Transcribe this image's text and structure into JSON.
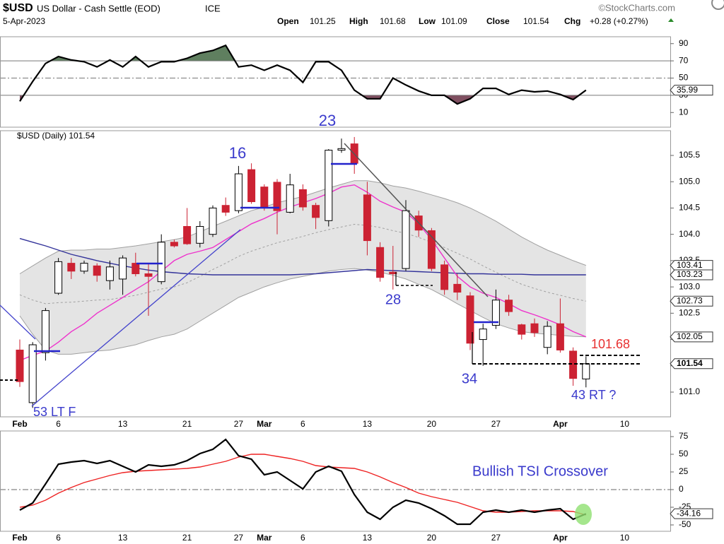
{
  "header": {
    "symbol": "$USD",
    "name": "US Dollar - Cash Settle (EOD)",
    "exchange": "ICE",
    "date": "5-Apr-2023",
    "source": "©StockCharts.com",
    "quote": [
      {
        "label": "Open",
        "value": 101.25
      },
      {
        "label": "High",
        "value": 101.68
      },
      {
        "label": "Low",
        "value": 101.09
      },
      {
        "label": "Close",
        "value": 101.54
      },
      {
        "label": "Chg",
        "value": "+0.28 (+0.27%)"
      }
    ]
  },
  "chart_data": [
    {
      "type": "line",
      "ylim": [
        -7,
        98
      ],
      "yticks": [
        90,
        70,
        50,
        30,
        10
      ],
      "levels": {
        "upper": 70,
        "middle": 50,
        "lower": 30
      },
      "upper_fill": "#5f7f5f",
      "lower_fill": "#7f4f60",
      "series": [
        {
          "color": "#000000",
          "values": [
            23,
            46,
            67,
            75,
            71,
            69,
            63,
            71,
            63,
            75,
            63,
            69,
            69,
            73,
            79,
            82,
            88,
            63,
            65,
            59,
            65,
            59,
            45,
            69,
            69,
            59,
            36,
            26,
            26,
            50,
            42,
            35,
            30,
            30,
            20,
            26,
            38,
            38,
            31,
            36,
            34,
            35,
            31,
            25,
            35.99,
            null,
            null,
            null
          ]
        }
      ]
    },
    {
      "type": "candlestick",
      "title": "$USD (Daily)",
      "categories": [
        "Feb",
        null,
        null,
        "6",
        null,
        null,
        null,
        null,
        "13",
        null,
        null,
        null,
        null,
        "21",
        null,
        null,
        null,
        "27",
        null,
        "Mar",
        null,
        null,
        "6",
        null,
        null,
        null,
        null,
        "13",
        null,
        null,
        null,
        null,
        "20",
        null,
        null,
        null,
        null,
        "27",
        null,
        null,
        null,
        null,
        "Apr",
        null,
        null,
        null,
        null,
        "10"
      ],
      "open": [
        101.8,
        100.8,
        101.75,
        102.88,
        103.45,
        103.3,
        103.4,
        103.12,
        103.15,
        103.45,
        103.25,
        103.1,
        103.85,
        104.15,
        103.83,
        104.0,
        104.55,
        104.45,
        105.23,
        104.9,
        104.99,
        104.42,
        104.85,
        104.55,
        104.26,
        105.6,
        105.72,
        104.75,
        103.75,
        103.28,
        103.35,
        104.35,
        104.07,
        103.42,
        103.05,
        102.83,
        102.0,
        102.27,
        102.75,
        102.28,
        102.3,
        101.85,
        102.3,
        101.78,
        101.25,
        null,
        null,
        null
      ],
      "high": [
        102.0,
        101.95,
        102.6,
        103.55,
        103.55,
        103.5,
        103.45,
        103.5,
        103.6,
        103.65,
        103.45,
        104.0,
        103.9,
        104.5,
        104.25,
        104.55,
        104.7,
        105.3,
        105.35,
        104.95,
        105.05,
        105.15,
        104.95,
        104.6,
        105.62,
        105.82,
        105.85,
        105.0,
        103.85,
        103.78,
        104.65,
        104.45,
        104.12,
        103.5,
        103.25,
        102.9,
        102.3,
        102.95,
        102.85,
        102.3,
        102.4,
        102.35,
        102.78,
        101.85,
        101.68,
        null,
        null,
        null
      ],
      "low": [
        101.1,
        100.7,
        101.6,
        102.85,
        103.15,
        103.25,
        103.1,
        102.95,
        102.85,
        103.2,
        102.45,
        103.05,
        103.75,
        103.8,
        103.75,
        103.95,
        104.35,
        104.4,
        104.58,
        104.45,
        104.0,
        104.4,
        104.45,
        104.1,
        104.15,
        105.55,
        105.15,
        103.6,
        103.1,
        102.95,
        103.3,
        103.95,
        103.3,
        102.85,
        102.75,
        101.8,
        101.5,
        102.2,
        102.45,
        102.0,
        102.05,
        101.72,
        101.75,
        101.12,
        101.09,
        null,
        null,
        null
      ],
      "close": [
        101.2,
        101.9,
        102.55,
        103.48,
        103.3,
        103.45,
        103.22,
        103.38,
        103.55,
        103.25,
        103.2,
        103.85,
        103.78,
        103.82,
        104.15,
        104.5,
        104.42,
        105.15,
        104.62,
        104.5,
        104.45,
        104.94,
        104.52,
        104.32,
        105.6,
        105.63,
        105.35,
        103.88,
        103.18,
        103.25,
        104.45,
        104.08,
        103.35,
        102.95,
        102.9,
        101.93,
        102.2,
        102.75,
        102.53,
        102.1,
        102.13,
        102.25,
        101.8,
        101.26,
        101.54,
        null,
        null,
        null
      ],
      "up_color": "#ffffff",
      "down_color": "#cc2233",
      "ylim": [
        100.53,
        105.97
      ],
      "yticks": [
        105.5,
        {
          "value": 105,
          "label": "105.0"
        },
        104.5,
        {
          "value": 104,
          "label": "104.0"
        },
        103.5,
        {
          "value": 103,
          "label": "103.0"
        },
        102.5,
        {
          "value": 102,
          "label": "102.0"
        },
        101.5,
        {
          "value": 101,
          "label": "101.0"
        }
      ],
      "bands": {
        "fill": "#e4e4e4",
        "color": "#a0a0a0",
        "upper": [
          103.25,
          103.4,
          103.55,
          103.68,
          103.7,
          103.7,
          103.72,
          103.72,
          103.75,
          103.78,
          103.82,
          103.86,
          103.9,
          103.95,
          104.05,
          104.15,
          104.25,
          104.35,
          104.45,
          104.52,
          104.6,
          104.66,
          104.72,
          104.8,
          104.88,
          104.95,
          105.02,
          105.02,
          104.98,
          104.92,
          104.88,
          104.82,
          104.75,
          104.68,
          104.6,
          104.5,
          104.38,
          104.25,
          104.1,
          103.95,
          103.82,
          103.7,
          103.6,
          103.5,
          103.41,
          null,
          null,
          null
        ],
        "middle": [
          102.85,
          102.75,
          102.68,
          102.7,
          102.71,
          102.73,
          102.75,
          102.76,
          102.8,
          102.84,
          102.9,
          102.96,
          103.0,
          103.08,
          103.2,
          103.33,
          103.45,
          103.58,
          103.68,
          103.76,
          103.84,
          103.9,
          103.96,
          104.03,
          104.09,
          104.14,
          104.19,
          104.17,
          104.13,
          104.07,
          104.02,
          103.94,
          103.85,
          103.75,
          103.64,
          103.53,
          103.4,
          103.28,
          103.16,
          103.05,
          102.97,
          102.9,
          102.84,
          102.78,
          102.73,
          null,
          null,
          null
        ],
        "lower": [
          102.45,
          102.1,
          101.8,
          101.72,
          101.72,
          101.75,
          101.78,
          101.8,
          101.85,
          101.9,
          101.98,
          102.05,
          102.1,
          102.2,
          102.35,
          102.5,
          102.65,
          102.8,
          102.9,
          103.0,
          103.08,
          103.15,
          103.2,
          103.25,
          103.3,
          103.33,
          103.35,
          103.32,
          103.28,
          103.22,
          103.15,
          103.05,
          102.95,
          102.82,
          102.68,
          102.55,
          102.42,
          102.3,
          102.22,
          102.15,
          102.12,
          102.1,
          102.08,
          102.06,
          102.05,
          null,
          null,
          null
        ]
      },
      "series": [
        {
          "color": "#33339a",
          "values": [
            103.92,
            103.85,
            103.78,
            103.7,
            103.62,
            103.56,
            103.5,
            103.45,
            103.4,
            103.36,
            103.32,
            103.29,
            103.27,
            103.25,
            103.24,
            103.23,
            103.23,
            103.23,
            103.23,
            103.23,
            103.23,
            103.23,
            103.24,
            103.25,
            103.27,
            103.29,
            103.31,
            103.33,
            103.32,
            103.31,
            103.3,
            103.29,
            103.28,
            103.27,
            103.26,
            103.25,
            103.25,
            103.24,
            103.24,
            103.24,
            103.23,
            103.23,
            103.23,
            103.23,
            103.23,
            null,
            null,
            null
          ]
        },
        {
          "color": "#ee33cc",
          "values": [
            101.6,
            101.7,
            101.78,
            101.95,
            102.15,
            102.3,
            102.5,
            102.65,
            102.8,
            102.95,
            103.1,
            103.3,
            103.5,
            103.62,
            103.68,
            103.75,
            103.9,
            104.05,
            104.2,
            104.3,
            104.42,
            104.52,
            104.6,
            104.68,
            104.78,
            104.9,
            104.94,
            104.8,
            104.63,
            104.52,
            104.42,
            104.2,
            103.9,
            103.55,
            103.2,
            103.0,
            102.88,
            102.8,
            102.68,
            102.55,
            102.47,
            102.38,
            102.28,
            102.15,
            102.05,
            null,
            null,
            null
          ]
        }
      ],
      "annotations": [
        {
          "text": "16",
          "color": "#3a3acc"
        },
        {
          "text": "23",
          "color": "#3a3acc"
        },
        {
          "text": "28",
          "color": "#3a3acc"
        },
        {
          "text": "34",
          "color": "#3a3acc"
        },
        {
          "text": "53 LT F",
          "color": "#3a3acc"
        },
        {
          "text": "43 RT ?",
          "color": "#3a3acc"
        },
        {
          "text": "101.68",
          "color": "#e83030"
        }
      ]
    },
    {
      "type": "line",
      "ylim": [
        -59,
        83
      ],
      "yticks": [
        75,
        50,
        25,
        0,
        -25,
        -50
      ],
      "reference_line": 0,
      "series": [
        {
          "color": "#000000",
          "values": [
            -29,
            -19,
            8,
            36,
            39,
            41,
            37,
            41,
            33,
            25,
            35,
            33,
            35,
            41,
            51,
            57,
            71,
            48,
            43,
            21,
            25,
            13,
            1,
            25,
            33,
            26,
            -7,
            -32,
            -42,
            -25,
            -15,
            -19,
            -27,
            -37,
            -49,
            -49,
            -32,
            -29,
            -32,
            -29,
            -32,
            -29,
            -27,
            -42,
            -34.16,
            null,
            null,
            null
          ]
        },
        {
          "color": "#ee2222",
          "values": [
            -25,
            -22,
            -15,
            -5,
            3,
            10,
            15,
            20,
            24,
            26,
            27,
            28,
            29,
            30,
            32,
            36,
            40,
            46,
            50,
            50,
            47,
            44,
            40,
            34,
            32,
            31,
            30,
            25,
            18,
            10,
            3,
            -5,
            -10,
            -14,
            -18,
            -24,
            -30,
            -32,
            -32,
            -31,
            -30,
            -30,
            -30,
            -31,
            -36,
            null,
            null,
            null
          ]
        }
      ],
      "annotations": [
        {
          "text": "Bullish TSI Crossover",
          "color": "#3a3acc"
        }
      ]
    }
  ]
}
